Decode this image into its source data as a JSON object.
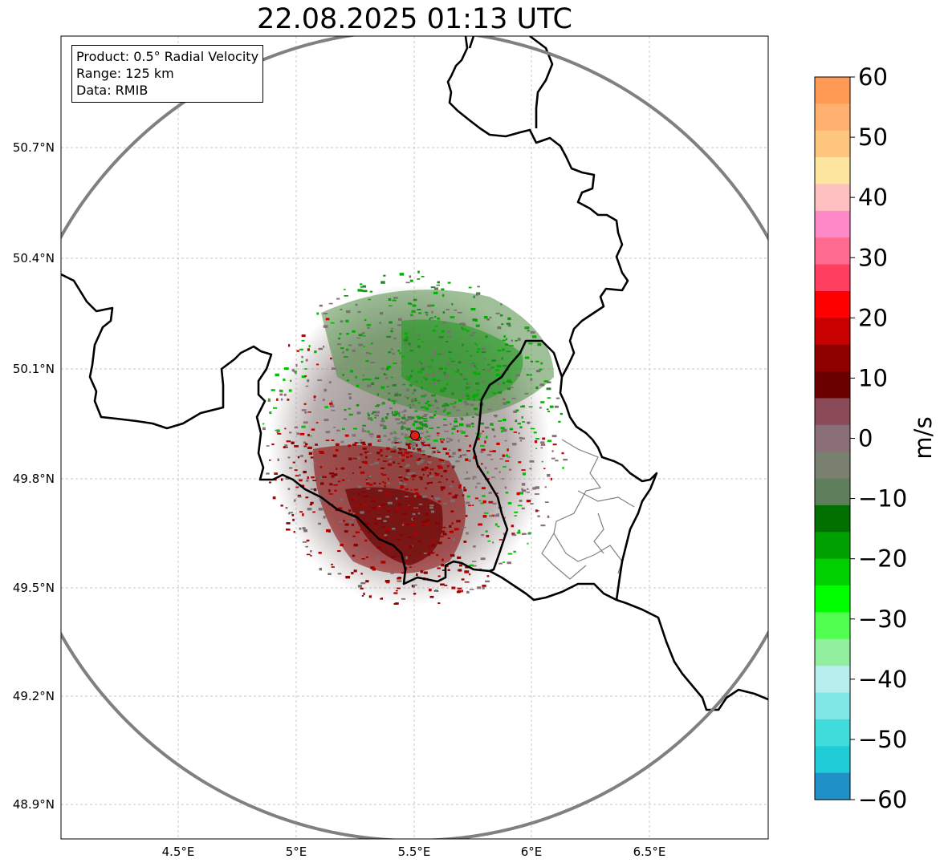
{
  "title": "22.08.2025 01:13 UTC",
  "info": {
    "product": "Product: 0.5° Radial Velocity",
    "range": "Range: 125 km",
    "source": "Data: RMIB"
  },
  "axes": {
    "lon_ticks": [
      "4.5°E",
      "5°E",
      "5.5°E",
      "6°E",
      "6.5°E"
    ],
    "lat_ticks": [
      "50.7°N",
      "50.4°N",
      "50.1°N",
      "49.8°N",
      "49.5°N",
      "49.2°N",
      "48.9°N"
    ]
  },
  "colorbar": {
    "label": "m/s",
    "ticks": [
      "60",
      "50",
      "40",
      "30",
      "20",
      "10",
      "0",
      "−10",
      "−20",
      "−30",
      "−40",
      "−50",
      "−60"
    ],
    "colors": [
      "#ff9a55",
      "#ffb070",
      "#ffc680",
      "#ffe6a0",
      "#ffc0c0",
      "#ff88c8",
      "#ff6a90",
      "#ff3e60",
      "#ff0000",
      "#c80000",
      "#8c0000",
      "#6a0000",
      "#8a4a58",
      "#8a6e78",
      "#7a8070",
      "#5e7e5c",
      "#007000",
      "#00a000",
      "#00d000",
      "#00ff00",
      "#50ff50",
      "#90f0a0",
      "#b8eeee",
      "#80e6e6",
      "#40dcdc",
      "#20ccd8",
      "#2090c8"
    ]
  },
  "radar_site": {
    "lon": 5.505,
    "lat": 49.914
  },
  "colors": {
    "range_ring": "#808080",
    "border": "#000000",
    "marker": "#e21d1d"
  }
}
